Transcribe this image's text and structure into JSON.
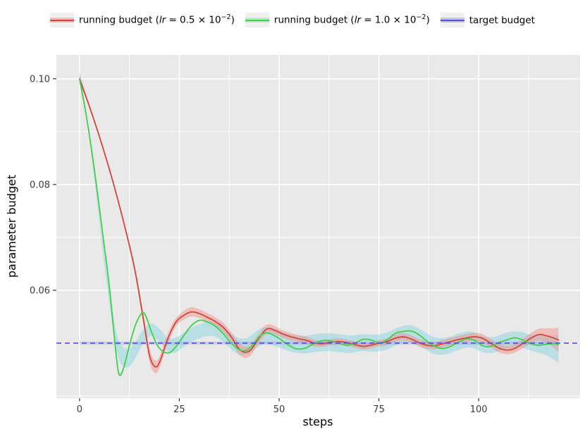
{
  "figure": {
    "background": "#ffffff",
    "plot_background": "#e9e9e9",
    "grid_color": "#ffffff",
    "tick_color": "#333333",
    "tick_label_color": "#3a3a3a"
  },
  "legend": {
    "entries": [
      {
        "id": "running-budget-lr-0-5",
        "line_color": "#d6453c",
        "band_color": "rgba(244,138,129,0.5)",
        "parts": [
          {
            "t": "running budget ("
          },
          {
            "t": "lr",
            "style": "italic"
          },
          {
            "t": " = 0.5 × 10"
          },
          {
            "t": "−2",
            "style": "sup"
          },
          {
            "t": ")"
          }
        ]
      },
      {
        "id": "running-budget-lr-1-0",
        "line_color": "#3ed24b",
        "band_color": "rgba(140,230,150,0.5)",
        "parts": [
          {
            "t": "running budget ("
          },
          {
            "t": "lr",
            "style": "italic"
          },
          {
            "t": " = 1.0 × 10"
          },
          {
            "t": "−2",
            "style": "sup"
          },
          {
            "t": ")"
          }
        ]
      },
      {
        "id": "target-budget",
        "line_color": "#5551d4",
        "band_color": "rgba(150,148,222,0.5)",
        "parts": [
          {
            "t": "target budget"
          }
        ]
      }
    ]
  },
  "chart_data": {
    "type": "line",
    "xlabel": "steps",
    "ylabel": "parameter budget",
    "xlim": [
      -5.8,
      125.4
    ],
    "ylim": [
      0.0396,
      0.1045
    ],
    "x_ticks": [
      0,
      25,
      50,
      75,
      100
    ],
    "x_tick_labels": [
      "0",
      "25",
      "50",
      "75",
      "100"
    ],
    "x_minor_ticks": [
      12.5,
      37.5,
      62.5,
      87.5,
      112.5
    ],
    "y_ticks": [
      0.06,
      0.08,
      0.1
    ],
    "y_tick_labels": [
      "0.06",
      "0.08",
      "0.10"
    ],
    "y_minor_ticks": [
      0.04,
      0.05,
      0.07,
      0.09
    ],
    "grid": true,
    "legend_position": "top",
    "series": [
      {
        "name": "running budget (lr = 0.5 × 10⁻²)",
        "color": "#d6453c",
        "width": 1.8,
        "points": [
          [
            0,
            0.1
          ],
          [
            3,
            0.0936
          ],
          [
            6,
            0.0866
          ],
          [
            9,
            0.0788
          ],
          [
            12,
            0.07
          ],
          [
            14,
            0.0633
          ],
          [
            16,
            0.0545
          ],
          [
            17.5,
            0.0478
          ],
          [
            18.8,
            0.0456
          ],
          [
            20,
            0.0463
          ],
          [
            22,
            0.0506
          ],
          [
            24,
            0.0538
          ],
          [
            26,
            0.0552
          ],
          [
            28,
            0.0559
          ],
          [
            30,
            0.0556
          ],
          [
            32,
            0.0549
          ],
          [
            34,
            0.0541
          ],
          [
            36,
            0.053
          ],
          [
            38,
            0.0512
          ],
          [
            40,
            0.0489
          ],
          [
            41.5,
            0.0483
          ],
          [
            43,
            0.0488
          ],
          [
            45,
            0.051
          ],
          [
            47,
            0.0527
          ],
          [
            49,
            0.0524
          ],
          [
            51,
            0.0517
          ],
          [
            53,
            0.0512
          ],
          [
            55,
            0.0508
          ],
          [
            57,
            0.0505
          ],
          [
            59,
            0.05
          ],
          [
            61,
            0.0499
          ],
          [
            63,
            0.0502
          ],
          [
            65,
            0.0503
          ],
          [
            67,
            0.0501
          ],
          [
            69,
            0.0497
          ],
          [
            71,
            0.0494
          ],
          [
            73,
            0.0496
          ],
          [
            75,
            0.05
          ],
          [
            77,
            0.0503
          ],
          [
            79,
            0.0509
          ],
          [
            81,
            0.0512
          ],
          [
            83,
            0.0508
          ],
          [
            85,
            0.0501
          ],
          [
            87,
            0.0496
          ],
          [
            89,
            0.0495
          ],
          [
            91,
            0.0499
          ],
          [
            93,
            0.0503
          ],
          [
            95,
            0.0507
          ],
          [
            97,
            0.051
          ],
          [
            99,
            0.0512
          ],
          [
            101,
            0.0509
          ],
          [
            103,
            0.05
          ],
          [
            105,
            0.0491
          ],
          [
            107,
            0.0487
          ],
          [
            109,
            0.049
          ],
          [
            111,
            0.0499
          ],
          [
            113,
            0.0509
          ],
          [
            115,
            0.0516
          ],
          [
            117,
            0.0514
          ],
          [
            119,
            0.0509
          ],
          [
            120,
            0.0506
          ]
        ]
      },
      {
        "name": "running budget (lr = 1.0 × 10⁻²)",
        "color": "#3ed24b",
        "width": 1.8,
        "points": [
          [
            0,
            0.1
          ],
          [
            2,
            0.0916
          ],
          [
            4,
            0.0812
          ],
          [
            6,
            0.0695
          ],
          [
            7.5,
            0.0605
          ],
          [
            9,
            0.049
          ],
          [
            9.9,
            0.0441
          ],
          [
            11,
            0.0452
          ],
          [
            12.5,
            0.0496
          ],
          [
            14,
            0.0534
          ],
          [
            15.5,
            0.0556
          ],
          [
            16.5,
            0.0553
          ],
          [
            18,
            0.0522
          ],
          [
            19.5,
            0.0496
          ],
          [
            21,
            0.0484
          ],
          [
            22.5,
            0.0482
          ],
          [
            24,
            0.0492
          ],
          [
            26,
            0.0513
          ],
          [
            28,
            0.0533
          ],
          [
            30,
            0.0543
          ],
          [
            32,
            0.054
          ],
          [
            34,
            0.0532
          ],
          [
            36,
            0.0518
          ],
          [
            38,
            0.05
          ],
          [
            40,
            0.0488
          ],
          [
            41.5,
            0.0486
          ],
          [
            43,
            0.0493
          ],
          [
            45,
            0.0512
          ],
          [
            46.5,
            0.0519
          ],
          [
            48,
            0.0517
          ],
          [
            50,
            0.0509
          ],
          [
            52,
            0.0498
          ],
          [
            54,
            0.049
          ],
          [
            55.5,
            0.0489
          ],
          [
            57,
            0.0492
          ],
          [
            59,
            0.05
          ],
          [
            61,
            0.0505
          ],
          [
            63,
            0.0504
          ],
          [
            65,
            0.05
          ],
          [
            67,
            0.0496
          ],
          [
            69,
            0.05
          ],
          [
            71,
            0.0507
          ],
          [
            73,
            0.0506
          ],
          [
            75,
            0.0501
          ],
          [
            77,
            0.0506
          ],
          [
            79,
            0.0518
          ],
          [
            81,
            0.0522
          ],
          [
            83,
            0.0523
          ],
          [
            85,
            0.0516
          ],
          [
            87,
            0.0504
          ],
          [
            89,
            0.0494
          ],
          [
            91,
            0.049
          ],
          [
            93,
            0.0494
          ],
          [
            95,
            0.0502
          ],
          [
            97,
            0.0508
          ],
          [
            99,
            0.0505
          ],
          [
            101,
            0.0495
          ],
          [
            103,
            0.0494
          ],
          [
            105,
            0.0501
          ],
          [
            107,
            0.0506
          ],
          [
            109,
            0.051
          ],
          [
            111,
            0.0506
          ],
          [
            113,
            0.0499
          ],
          [
            115,
            0.0496
          ],
          [
            117,
            0.0498
          ],
          [
            119,
            0.0499
          ],
          [
            120,
            0.0497
          ]
        ]
      },
      {
        "name": "target budget",
        "color": "#5551d4",
        "width": 1.7,
        "style": "dashed",
        "value": 0.05
      }
    ],
    "bands": [
      {
        "name": "band-lr-1-0",
        "color": "rgba(138,213,224,0.5)",
        "center_points": [
          [
            0,
            0.1006
          ],
          [
            2,
            0.0915
          ],
          [
            4,
            0.08
          ],
          [
            6,
            0.0672
          ],
          [
            8,
            0.056
          ],
          [
            9.5,
            0.0495
          ],
          [
            11,
            0.0474
          ],
          [
            12.5,
            0.0473
          ],
          [
            14,
            0.0487
          ],
          [
            16,
            0.0513
          ],
          [
            18,
            0.0525
          ],
          [
            20,
            0.0515
          ],
          [
            22,
            0.0498
          ],
          [
            24,
            0.0496
          ],
          [
            26,
            0.0506
          ],
          [
            28,
            0.0516
          ],
          [
            30,
            0.0522
          ],
          [
            32,
            0.0527
          ],
          [
            34,
            0.0526
          ],
          [
            36,
            0.0517
          ],
          [
            38,
            0.0503
          ],
          [
            40,
            0.0494
          ],
          [
            42,
            0.0494
          ],
          [
            44,
            0.0505
          ],
          [
            46,
            0.0514
          ],
          [
            48,
            0.0513
          ],
          [
            50,
            0.0508
          ],
          [
            53,
            0.05
          ],
          [
            56,
            0.0497
          ],
          [
            59,
            0.05
          ],
          [
            62,
            0.0502
          ],
          [
            65,
            0.05
          ],
          [
            68,
            0.0498
          ],
          [
            71,
            0.0501
          ],
          [
            74,
            0.05
          ],
          [
            77,
            0.0504
          ],
          [
            80,
            0.0514
          ],
          [
            83,
            0.0518
          ],
          [
            86,
            0.0507
          ],
          [
            89,
            0.0495
          ],
          [
            92,
            0.0495
          ],
          [
            95,
            0.0503
          ],
          [
            98,
            0.0507
          ],
          [
            101,
            0.0498
          ],
          [
            104,
            0.0497
          ],
          [
            107,
            0.0505
          ],
          [
            110,
            0.0507
          ],
          [
            113,
            0.0501
          ],
          [
            115,
            0.0498
          ],
          [
            117,
            0.0495
          ],
          [
            119,
            0.0491
          ],
          [
            120,
            0.0489
          ]
        ],
        "halfwidth_points": [
          [
            0,
            0.0009
          ],
          [
            2,
            0.0005
          ],
          [
            4,
            0.0006
          ],
          [
            6,
            0.001
          ],
          [
            8,
            0.0014
          ],
          [
            9.5,
            0.0017
          ],
          [
            11,
            0.0018
          ],
          [
            12.5,
            0.0017
          ],
          [
            14,
            0.0015
          ],
          [
            16,
            0.0013
          ],
          [
            18,
            0.0012
          ],
          [
            20,
            0.0012
          ],
          [
            22,
            0.0013
          ],
          [
            24,
            0.0014
          ],
          [
            28,
            0.0013
          ],
          [
            34,
            0.0014
          ],
          [
            38,
            0.0015
          ],
          [
            44,
            0.0016
          ],
          [
            50,
            0.0016
          ],
          [
            59,
            0.0017
          ],
          [
            65,
            0.0017
          ],
          [
            71,
            0.0016
          ],
          [
            80,
            0.0016
          ],
          [
            89,
            0.0016
          ],
          [
            98,
            0.0015
          ],
          [
            107,
            0.0015
          ],
          [
            113,
            0.0015
          ],
          [
            115,
            0.0016
          ],
          [
            117,
            0.0018
          ],
          [
            119,
            0.0023
          ],
          [
            120,
            0.0027
          ]
        ]
      },
      {
        "name": "band-lr-0-5",
        "color": "rgba(244,138,129,0.45)",
        "follows": 0,
        "halfwidth_points": [
          [
            0,
            0.001
          ],
          [
            1.5,
            0.0004
          ],
          [
            4,
            0.0003
          ],
          [
            8,
            0.0003
          ],
          [
            11,
            0.0004
          ],
          [
            14,
            0.0007
          ],
          [
            16,
            0.001
          ],
          [
            18,
            0.0013
          ],
          [
            20,
            0.0011
          ],
          [
            22,
            0.0009
          ],
          [
            25,
            0.0008
          ],
          [
            28,
            0.0009
          ],
          [
            31,
            0.0008
          ],
          [
            34,
            0.0008
          ],
          [
            37,
            0.0009
          ],
          [
            40,
            0.0011
          ],
          [
            42,
            0.0011
          ],
          [
            45,
            0.0009
          ],
          [
            48,
            0.0008
          ],
          [
            52,
            0.0007
          ],
          [
            56,
            0.0007
          ],
          [
            60,
            0.0006
          ],
          [
            65,
            0.0006
          ],
          [
            70,
            0.0006
          ],
          [
            75,
            0.0006
          ],
          [
            80,
            0.0007
          ],
          [
            85,
            0.0007
          ],
          [
            90,
            0.0007
          ],
          [
            95,
            0.0007
          ],
          [
            100,
            0.0008
          ],
          [
            104,
            0.0008
          ],
          [
            108,
            0.0008
          ],
          [
            112,
            0.0009
          ],
          [
            115,
            0.0011
          ],
          [
            117,
            0.0014
          ],
          [
            119,
            0.0019
          ],
          [
            120,
            0.0023
          ]
        ]
      },
      {
        "name": "band-target",
        "color": "rgba(150,148,222,0.35)",
        "center": 0.05,
        "halfwidth": 0.0003,
        "x_range": [
          0,
          120
        ]
      }
    ]
  }
}
